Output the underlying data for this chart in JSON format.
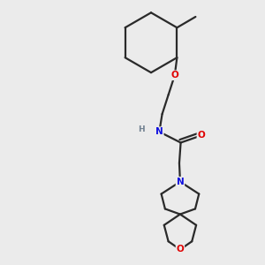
{
  "background_color": "#ebebeb",
  "bond_color": "#2a2a2a",
  "atom_colors": {
    "O": "#e00000",
    "N": "#1010e0",
    "H": "#708090",
    "C": "#2a2a2a"
  },
  "figsize": [
    3.0,
    3.0
  ],
  "dpi": 100
}
